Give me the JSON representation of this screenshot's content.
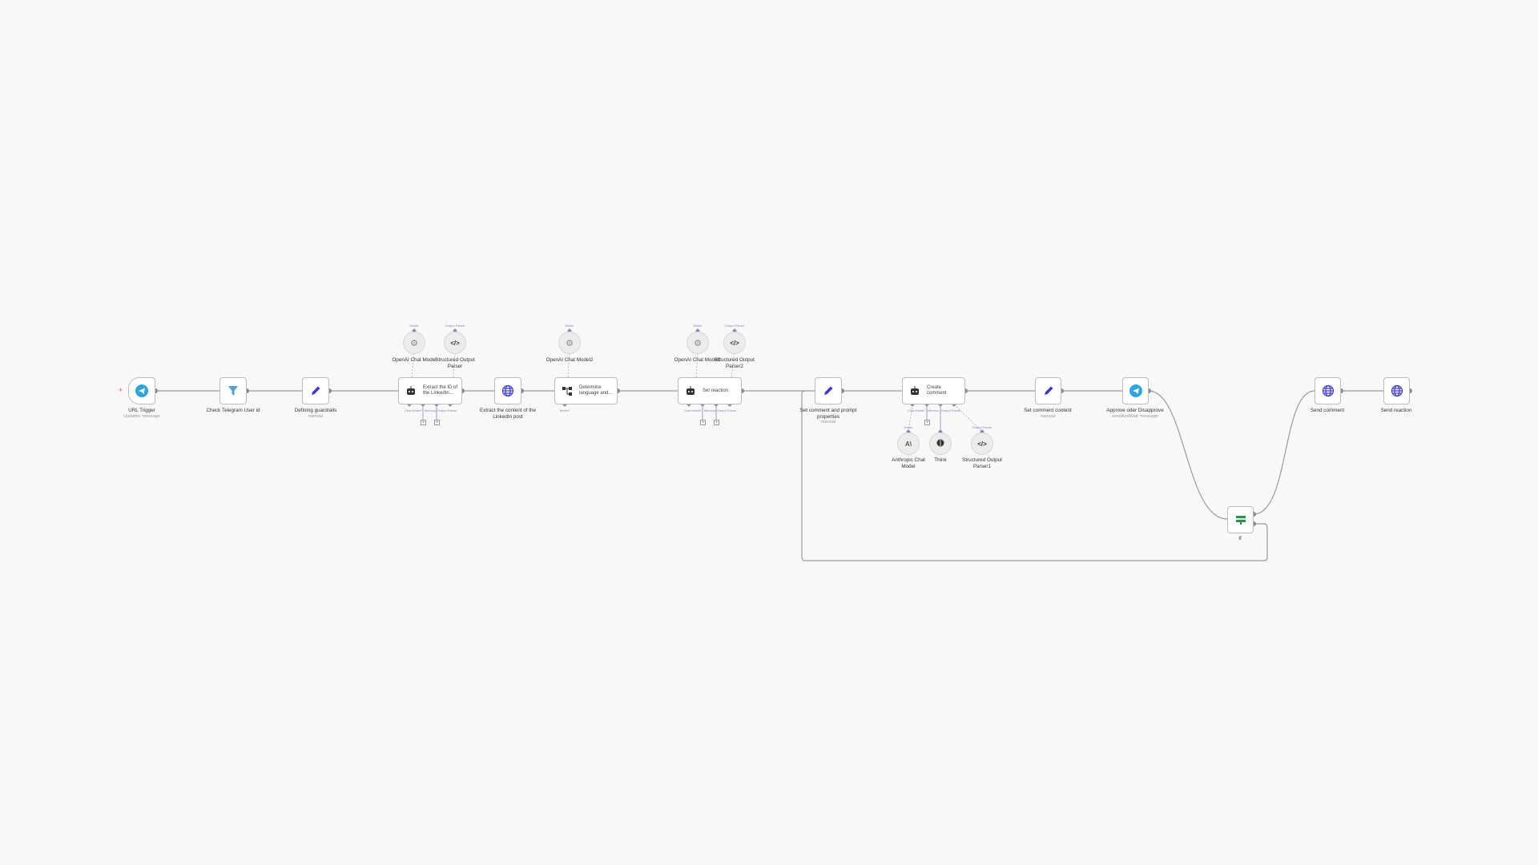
{
  "canvas": {
    "background": "#f8f8f8"
  },
  "colors": {
    "edge": "#9a9a9a",
    "port": "#8a8a8a",
    "sub_port": "#8a86b8",
    "http_icon": "#3b3bd1",
    "telegram": "#2ca5e0",
    "if_icon": "#1a9b4b"
  },
  "nodes": {
    "url_trigger": {
      "label": "URL Trigger",
      "subtitle": "Updates: message",
      "icon": "telegram-icon"
    },
    "check_user": {
      "label": "Check Telegram User id",
      "icon": "filter-icon"
    },
    "guardrails": {
      "label": "Defining guardrails",
      "subtitle": "manual",
      "icon": "pencil-icon"
    },
    "extract_id": {
      "label": "Extract the ID of the LinkedIn...",
      "icon": "robot-icon"
    },
    "extract_content": {
      "label": "Extract the content of the LinkedIn post",
      "icon": "globe-icon"
    },
    "determine_lang": {
      "label": "Determine language and...",
      "icon": "branch-icon"
    },
    "set_reaction": {
      "label": "Set reaction",
      "icon": "robot-icon"
    },
    "set_comment_prompt": {
      "label": "Set comment and prompt properties",
      "subtitle": "manual",
      "icon": "pencil-icon"
    },
    "create_comment": {
      "label": "Create comment",
      "icon": "robot-icon"
    },
    "set_comment_content": {
      "label": "Set comment content",
      "subtitle": "manual",
      "icon": "pencil-icon"
    },
    "approve": {
      "label": "Approve oder Disapprove",
      "subtitle": "sendAndWait: message",
      "icon": "telegram-icon"
    },
    "if": {
      "label": "If",
      "icon": "if-icon"
    },
    "send_comment": {
      "label": "Send comment",
      "icon": "globe-icon"
    },
    "send_reaction": {
      "label": "Send reaction",
      "icon": "globe-icon"
    }
  },
  "sub_nodes": {
    "openai1": {
      "label": "OpenAI Chat Model",
      "port": "Model"
    },
    "parser1": {
      "label": "Structured Output Parser",
      "port": "Output Parser"
    },
    "openai2": {
      "label": "OpenAI Chat Model2",
      "port": "Model"
    },
    "openai3": {
      "label": "OpenAI Chat Model1",
      "port": "Model"
    },
    "parser2": {
      "label": "Structured Output Parser2",
      "port": "Output Parser"
    },
    "anthropic": {
      "label": "Anthropic Chat Model",
      "port": "Model"
    },
    "think": {
      "label": "Think",
      "port": "Tool"
    },
    "parser3": {
      "label": "Structured Output Parser1",
      "port": "Output Parser"
    }
  },
  "ports": {
    "chat_model": "Chat Model*",
    "memory": "Memory",
    "tool": "Tool",
    "output_parser": "Output Parser",
    "model": "Model*",
    "plus": "+",
    "add": "+"
  }
}
